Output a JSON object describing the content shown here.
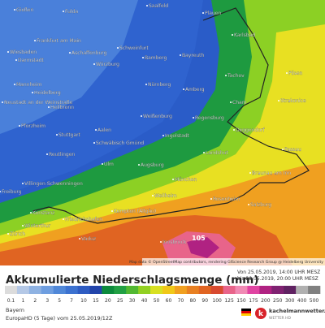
{
  "map": {
    "attribution": "Map data © OpenStreetMap contributors, rendering GIScience Research Group @ Heidelberg University",
    "max_label": "105",
    "cities": [
      "Gießen",
      "Fulda",
      "Saalfeld",
      "Plauen",
      "Frankfurt am Main",
      "Aschaffenburg",
      "Schweinfurt",
      "Bamberg",
      "Bayreuth",
      "Karlsbad",
      "Wiesbaden",
      "Darmstadt",
      "Würzburg",
      "Tachov",
      "Mannheim",
      "Heidelberg",
      "Nürnberg",
      "Amberg",
      "Pilsen",
      "Neustadt an der Weinstraße",
      "Heilbronn",
      "Weißenburg",
      "Regensburg",
      "Cham",
      "Strakonice",
      "Pforzheim",
      "Stuttgart",
      "Aalen",
      "Schwäbisch Gmünd",
      "Ingolstadt",
      "Deggendorf",
      "Reutlingen",
      "Ulm",
      "Augsburg",
      "Landshut",
      "Passau",
      "München",
      "Braunau am Inn",
      "Villingen-Schwenningen",
      "Freiburg",
      "Kempten (Allgäu)",
      "Weilheim",
      "Rosenheim",
      "Salzburg",
      "Konstanz",
      "Friedrichshafen",
      "Winterthur",
      "Innsbruck",
      "Vaduz",
      "Zürich"
    ]
  },
  "legend": {
    "title": "Akkumulierte Niederschlagsmenge (mm)",
    "period_from": "Von 25.05.2019, 14:00 UHR MESZ",
    "period_to": "bis 29.05.2019, 20:00 UHR MESZ",
    "ticks": [
      0.1,
      1,
      2,
      3,
      5,
      7,
      10,
      15,
      20,
      25,
      30,
      40,
      50,
      60,
      70,
      80,
      90,
      100,
      125,
      150,
      175,
      200,
      250,
      300,
      400,
      500
    ],
    "colors": [
      "#dcdcdc",
      "#b4c8e6",
      "#8eb2e2",
      "#6e9ee0",
      "#5088d8",
      "#3c72d0",
      "#2e5cc2",
      "#2244aa",
      "#0c8a3c",
      "#22a044",
      "#52b832",
      "#92d022",
      "#d8e022",
      "#f0c818",
      "#f0a020",
      "#e88022",
      "#e06422",
      "#d84a30",
      "#e8648a",
      "#f08ab4",
      "#e044a2",
      "#b02282",
      "#802272",
      "#602262",
      "#b0b0b0",
      "#808080"
    ]
  },
  "footer": {
    "region": "Bayern",
    "model": "EuropaHD (5 Tage) vom 25.05.2019/12Z",
    "brand": "kachelmannwetter.com",
    "brand_sub": "WETTER HD",
    "logo": "k"
  }
}
